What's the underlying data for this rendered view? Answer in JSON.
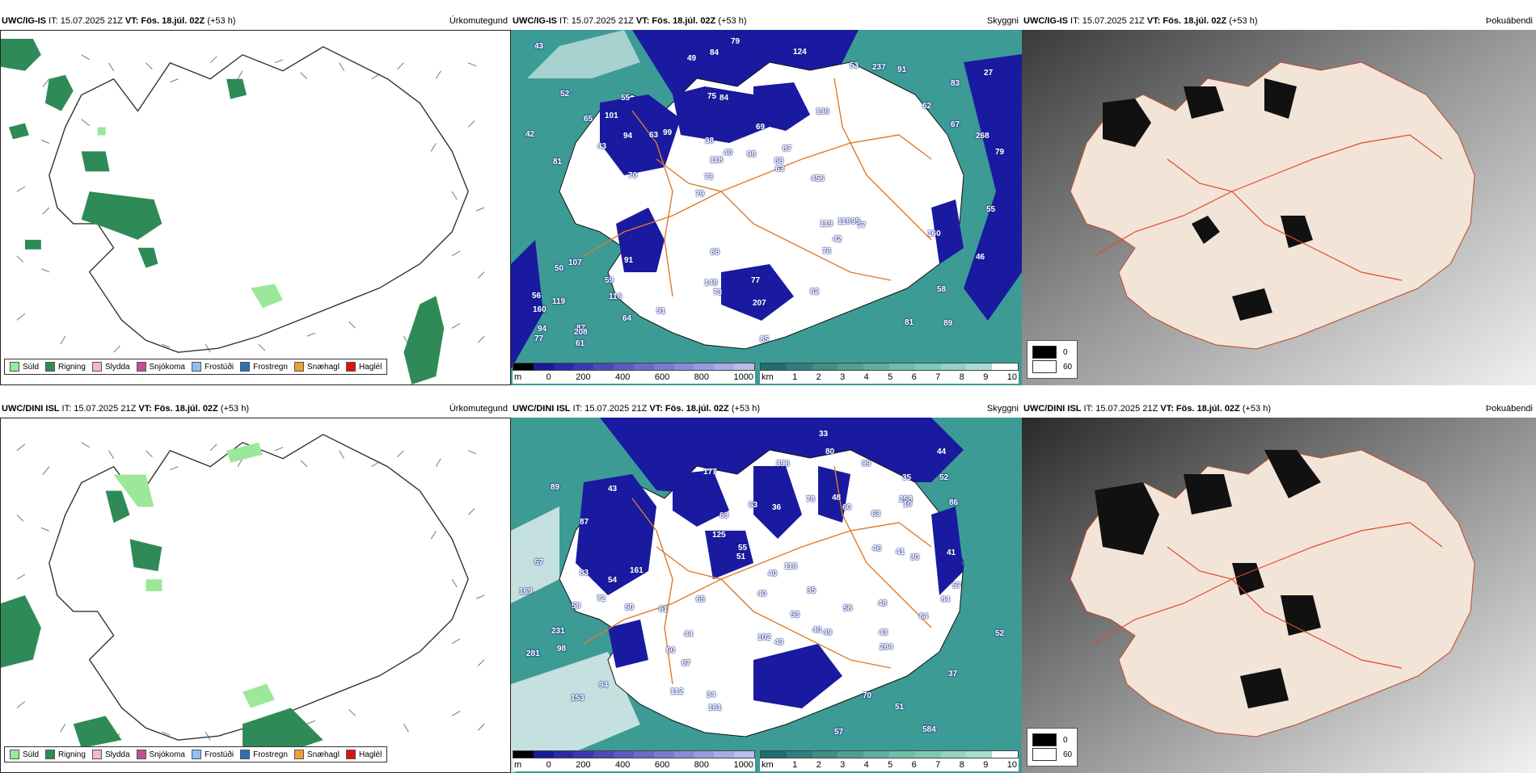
{
  "panels": {
    "top_precip": {
      "model": "UWC/IG-IS",
      "it": " IT: 15.07.2025 21Z ",
      "vt": "VT: Fös. 18.júl. 02Z",
      "offset": " (+53 h)",
      "ptype": "Úrkomutegund"
    },
    "top_cloud": {
      "model": "UWC/IG-IS",
      "it": " IT: 15.07.2025 21Z ",
      "vt": "VT: Fös. 18.júl. 02Z",
      "offset": " (+53 h)",
      "ptype": "Skyggni"
    },
    "top_fog": {
      "model": "UWC/IG-IS",
      "it": " IT: 15.07.2025 21Z ",
      "vt": "VT: Fös. 18.júl. 02Z",
      "offset": " (+53 h)",
      "ptype": "Þokuábendi"
    },
    "bot_precip": {
      "model": "UWC/DINI ISL",
      "it": " IT: 15.07.2025 21Z ",
      "vt": "VT: Fös. 18.júl. 02Z",
      "offset": " (+53 h)",
      "ptype": "Úrkomutegund"
    },
    "bot_cloud": {
      "model": "UWC/DINI ISL",
      "it": " IT: 15.07.2025 21Z ",
      "vt": "VT: Fös. 18.júl. 02Z",
      "offset": " (+53 h)",
      "ptype": "Skyggni"
    },
    "bot_fog": {
      "model": "UWC/DINI ISL",
      "it": " IT: 15.07.2025 21Z ",
      "vt": "VT: Fös. 18.júl. 02Z",
      "offset": " (+53 h)",
      "ptype": "Þokuábendi"
    }
  },
  "precip_legend": [
    {
      "label": "Súld",
      "color": "#9be89b"
    },
    {
      "label": "Rigning",
      "color": "#2e8b57"
    },
    {
      "label": "Slydda",
      "color": "#f4b6d8"
    },
    {
      "label": "Snjókoma",
      "color": "#c0509a"
    },
    {
      "label": "Frostúði",
      "color": "#8fbfef"
    },
    {
      "label": "Frostregn",
      "color": "#2f6fb8"
    },
    {
      "label": "Snæhagl",
      "color": "#f0a030"
    },
    {
      "label": "Haglél",
      "color": "#e01010"
    }
  ],
  "cloudbase_bar": {
    "unit": "m",
    "ticks": [
      "0",
      "200",
      "400",
      "600",
      "800",
      "1000"
    ],
    "colors": [
      "#000000",
      "#1a1a9a",
      "#2a2aa8",
      "#3a3ab0",
      "#4a4ab8",
      "#5a5ac0",
      "#6a6ac8",
      "#7a7ad0",
      "#8a8ad8",
      "#9a9ae0",
      "#aaaae6",
      "#bbbbec"
    ]
  },
  "visibility_bar": {
    "unit": "km",
    "ticks": [
      "1",
      "2",
      "3",
      "4",
      "5",
      "6",
      "7",
      "8",
      "9",
      "10"
    ],
    "colors": [
      "#1f6f6f",
      "#2f7f7a",
      "#3f8f86",
      "#4f9f92",
      "#5faf9e",
      "#6fbfaa",
      "#80c8b6",
      "#95d2c4",
      "#aadcd2",
      "#ffffff"
    ]
  },
  "cloud_cover_legend": [
    {
      "label": "0",
      "color": "#000000"
    },
    {
      "label": "60",
      "color": "#ffffff"
    }
  ],
  "top_numbers": [
    "89",
    "81",
    "83",
    "79",
    "136",
    "87",
    "75",
    "69",
    "107",
    "99",
    "160",
    "116",
    "84",
    "87",
    "77",
    "52",
    "84",
    "79",
    "119",
    "67",
    "73",
    "148",
    "118",
    "55",
    "53",
    "91",
    "81",
    "58",
    "95",
    "85",
    "63",
    "43",
    "76",
    "64",
    "268",
    "88",
    "94",
    "73",
    "63",
    "50",
    "62",
    "27",
    "42",
    "62",
    "59",
    "61",
    "77",
    "77",
    "91",
    "79",
    "70",
    "42",
    "101",
    "237",
    "208",
    "124",
    "49",
    "40",
    "46",
    "86",
    "91",
    "118",
    "94",
    "56",
    "43",
    "65",
    "55",
    "38",
    "207",
    "98",
    "119",
    "456",
    "160"
  ],
  "bot_numbers": [
    "584",
    "72",
    "40",
    "89",
    "37",
    "87",
    "94",
    "61",
    "63",
    "63",
    "60",
    "51",
    "67",
    "177",
    "35",
    "98",
    "48",
    "40",
    "57",
    "153",
    "44",
    "36",
    "41",
    "52",
    "57",
    "83",
    "50",
    "40",
    "51",
    "52",
    "49",
    "58",
    "60",
    "48",
    "69",
    "64",
    "84",
    "70",
    "35",
    "57",
    "44",
    "43",
    "112",
    "33",
    "65",
    "54",
    "86",
    "80",
    "78",
    "102",
    "58",
    "41",
    "43",
    "30",
    "125",
    "169",
    "161",
    "55",
    "53",
    "46",
    "34",
    "258",
    "43",
    "396",
    "281",
    "231",
    "161",
    "113",
    "99",
    "10",
    "284"
  ],
  "colors": {
    "ocean_teal": "#3d9b95",
    "deep_blue": "#1a1aa0",
    "roads": "#e07a2a",
    "land_fog": "#f3e4d8"
  }
}
